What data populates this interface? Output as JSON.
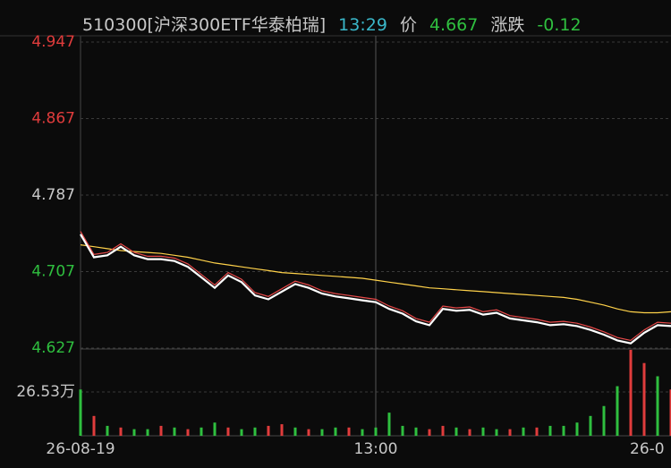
{
  "chart_data": {
    "type": "line",
    "header": [
      {
        "text": "510300[沪深300ETF华泰柏瑞]",
        "color": "#c8c8c8"
      },
      {
        "text": "13:29",
        "color": "#3ab7c9"
      },
      {
        "text": "价",
        "color": "#c8c8c8"
      },
      {
        "text": "4.667",
        "color": "#2fbf3f"
      },
      {
        "text": "涨跌",
        "color": "#c8c8c8"
      },
      {
        "text": "-0.12",
        "color": "#2fbf3f"
      }
    ],
    "categories": [
      "26-08-19",
      null,
      null,
      null,
      null,
      null,
      null,
      null,
      null,
      null,
      null,
      null,
      null,
      null,
      null,
      null,
      null,
      null,
      null,
      null,
      null,
      null,
      "13:00",
      null,
      null,
      null,
      null,
      null,
      null,
      null,
      null,
      null,
      null,
      null,
      null,
      null,
      null,
      null,
      null,
      null,
      null,
      null,
      null,
      null,
      "26-0"
    ],
    "ylim": [
      4.627,
      4.947
    ],
    "yticks": [
      {
        "value": 4.947,
        "label": "4.947",
        "color": "#e03c3c"
      },
      {
        "value": 4.867,
        "label": "4.867",
        "color": "#e03c3c"
      },
      {
        "value": 4.787,
        "label": "4.787",
        "color": "#c8c8c8"
      },
      {
        "value": 4.707,
        "label": "4.707",
        "color": "#2fbf3f"
      },
      {
        "value": 4.627,
        "label": "4.627",
        "color": "#2fbf3f"
      }
    ],
    "grid": true,
    "series": [
      {
        "color": "#ffd24a",
        "values": [
          4.735,
          4.733,
          4.731,
          4.729,
          4.728,
          4.727,
          4.726,
          4.724,
          4.722,
          4.719,
          4.716,
          4.714,
          4.712,
          4.71,
          4.708,
          4.706,
          4.705,
          4.704,
          4.703,
          4.702,
          4.701,
          4.7,
          4.698,
          4.696,
          4.694,
          4.692,
          4.69,
          4.689,
          4.688,
          4.687,
          4.686,
          4.685,
          4.684,
          4.683,
          4.682,
          4.681,
          4.68,
          4.678,
          4.675,
          4.672,
          4.668,
          4.665,
          4.664,
          4.664,
          4.665
        ]
      },
      {
        "color": "#e84a4a",
        "values": [
          4.749,
          4.725,
          4.727,
          4.736,
          4.727,
          4.723,
          4.723,
          4.721,
          4.715,
          4.704,
          4.693,
          4.706,
          4.699,
          4.685,
          4.681,
          4.689,
          4.697,
          4.693,
          4.687,
          4.684,
          4.682,
          4.68,
          4.678,
          4.671,
          4.666,
          4.658,
          4.654,
          4.671,
          4.669,
          4.67,
          4.665,
          4.667,
          4.661,
          4.659,
          4.657,
          4.654,
          4.655,
          4.653,
          4.649,
          4.644,
          4.638,
          4.635,
          4.646,
          4.654,
          4.653
        ]
      },
      {
        "color": "#ffffff",
        "values": [
          4.746,
          4.722,
          4.724,
          4.733,
          4.724,
          4.72,
          4.72,
          4.718,
          4.712,
          4.701,
          4.69,
          4.703,
          4.696,
          4.682,
          4.678,
          4.686,
          4.694,
          4.69,
          4.684,
          4.681,
          4.679,
          4.677,
          4.675,
          4.668,
          4.663,
          4.655,
          4.651,
          4.668,
          4.666,
          4.667,
          4.662,
          4.664,
          4.658,
          4.656,
          4.654,
          4.651,
          4.652,
          4.65,
          4.646,
          4.641,
          4.635,
          4.632,
          4.643,
          4.651,
          4.65
        ]
      }
    ],
    "volume": {
      "ylim": [
        0,
        52.5
      ],
      "yticks": [
        {
          "value": 26.53,
          "label": "26.53万"
        }
      ],
      "values": [
        28,
        12,
        6,
        5,
        4,
        4,
        6,
        5,
        4,
        5,
        8,
        5,
        4,
        5,
        6,
        7,
        5,
        4,
        4,
        5,
        5,
        4,
        5,
        14,
        6,
        5,
        4,
        6,
        5,
        4,
        5,
        4,
        4,
        5,
        5,
        6,
        6,
        8,
        12,
        18,
        30,
        52,
        44,
        36,
        28
      ],
      "colors": [
        "#2fbf3f",
        "#e03c3c",
        "#2fbf3f",
        "#e03c3c",
        "#2fbf3f",
        "#2fbf3f",
        "#e03c3c",
        "#2fbf3f",
        "#e03c3c",
        "#2fbf3f",
        "#2fbf3f",
        "#e03c3c",
        "#2fbf3f",
        "#2fbf3f",
        "#e03c3c",
        "#e03c3c",
        "#2fbf3f",
        "#e03c3c",
        "#2fbf3f",
        "#2fbf3f",
        "#e03c3c",
        "#2fbf3f",
        "#2fbf3f",
        "#2fbf3f",
        "#2fbf3f",
        "#2fbf3f",
        "#e03c3c",
        "#e03c3c",
        "#2fbf3f",
        "#e03c3c",
        "#2fbf3f",
        "#2fbf3f",
        "#e03c3c",
        "#2fbf3f",
        "#e03c3c",
        "#2fbf3f",
        "#2fbf3f",
        "#2fbf3f",
        "#2fbf3f",
        "#2fbf3f",
        "#2fbf3f",
        "#e03c3c",
        "#e03c3c",
        "#2fbf3f",
        "#e03c3c"
      ]
    }
  }
}
